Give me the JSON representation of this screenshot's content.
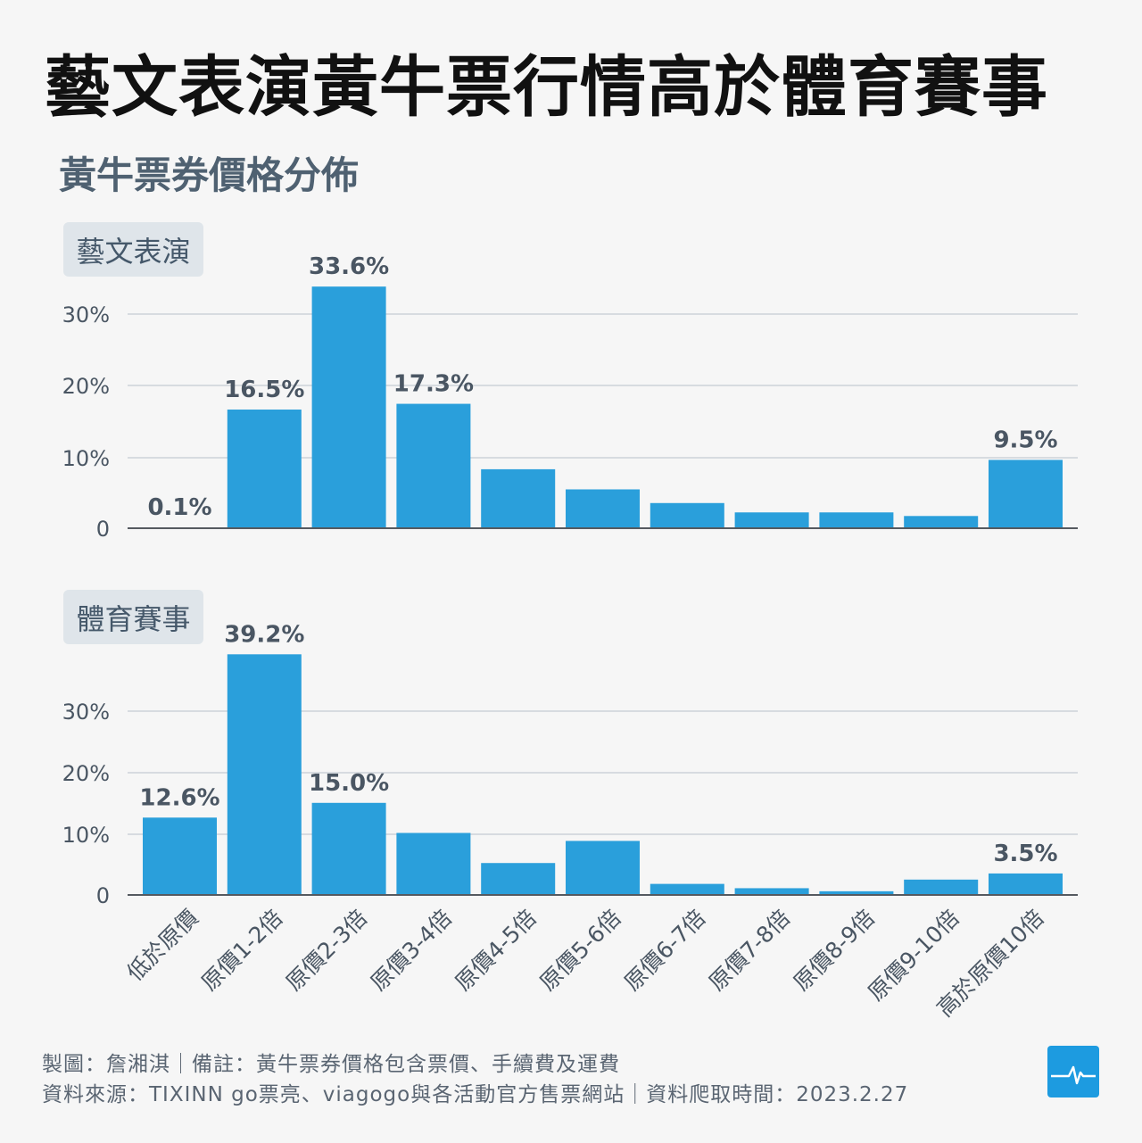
{
  "title": "藝文表演黃牛票行情高於體育賽事",
  "subtitle": "黃牛票券價格分佈",
  "colors": {
    "bar": "#2a9fdb",
    "grid": "#d7dbe0",
    "axis": "#555a60",
    "text": "#4a5663",
    "logo": "#1d9be0"
  },
  "chart_data": [
    {
      "type": "bar",
      "panel_label": "藝文表演",
      "categories": [
        "低於原價",
        "原價1-2倍",
        "原價2-3倍",
        "原價3-4倍",
        "原價4-5倍",
        "原價5-6倍",
        "原價6-7倍",
        "原價7-8倍",
        "原價8-9倍",
        "原價9-10倍",
        "高於原價10倍"
      ],
      "values": [
        0.1,
        16.5,
        33.6,
        17.3,
        8.2,
        5.4,
        3.5,
        2.2,
        2.2,
        1.7,
        9.5
      ],
      "data_labels": [
        "0.1%",
        "16.5%",
        "33.6%",
        "17.3%",
        "",
        "",
        "",
        "",
        "",
        "",
        "9.5%"
      ],
      "yticks": [
        "0",
        "10%",
        "20%",
        "30%"
      ],
      "ylim": [
        0,
        35
      ],
      "grid": true
    },
    {
      "type": "bar",
      "panel_label": "體育賽事",
      "categories": [
        "低於原價",
        "原價1-2倍",
        "原價2-3倍",
        "原價3-4倍",
        "原價4-5倍",
        "原價5-6倍",
        "原價6-7倍",
        "原價7-8倍",
        "原價8-9倍",
        "原價9-10倍",
        "高於原價10倍"
      ],
      "values": [
        12.6,
        39.2,
        15.0,
        10.1,
        5.2,
        8.8,
        1.8,
        1.1,
        0.6,
        2.5,
        3.5
      ],
      "data_labels": [
        "12.6%",
        "39.2%",
        "15.0%",
        "",
        "",
        "",
        "",
        "",
        "",
        "",
        "3.5%"
      ],
      "yticks": [
        "0",
        "10%",
        "20%",
        "30%"
      ],
      "ylim": [
        0,
        40
      ],
      "grid": true
    }
  ],
  "footer": {
    "line1": "製圖：詹湘淇｜備註：黃牛票券價格包含票價、手續費及運費",
    "line2": "資料來源：TIXINN go票亮、viagogo與各活動官方售票網站｜資料爬取時間：2023.2.27"
  },
  "logo_icon": "pulse-line-icon"
}
